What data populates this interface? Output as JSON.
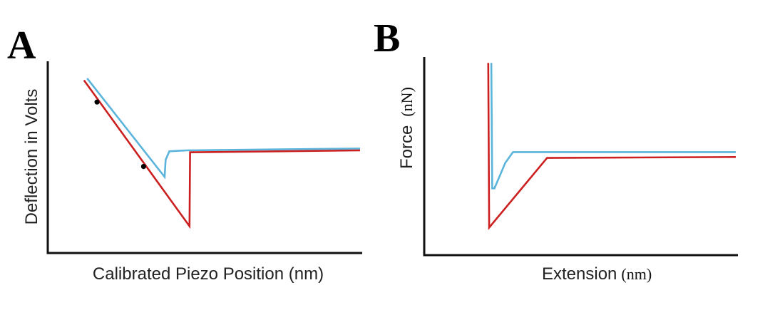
{
  "chart_data": [
    {
      "type": "line",
      "panel": "A",
      "xlabel": "Calibrated Piezo Position (nm)",
      "ylabel": "Deflection in Volts",
      "xlim": [
        0,
        100
      ],
      "ylim": [
        0,
        100
      ],
      "grid": false,
      "series": [
        {
          "color": "#5ab4dc",
          "x": [
            12,
            37,
            37.3,
            38.5,
            44,
            100
          ],
          "y": [
            91,
            39,
            48,
            52.5,
            53,
            54
          ]
        },
        {
          "color": "#cc1f1f",
          "x": [
            11,
            45,
            45.2,
            100
          ],
          "y": [
            90,
            13,
            52,
            53
          ]
        }
      ],
      "markers": [
        {
          "x": 15.2,
          "y": 78.5,
          "color": "#000000"
        },
        {
          "x": 30.2,
          "y": 44.5,
          "color": "#000000"
        }
      ]
    },
    {
      "type": "line",
      "panel": "B",
      "xlabel": "Extension",
      "xunit": "(nm)",
      "ylabel": "Force",
      "yunit": "(nN)",
      "xlim": [
        0,
        100
      ],
      "ylim": [
        0,
        100
      ],
      "grid": false,
      "series": [
        {
          "color": "#5ab4dc",
          "x": [
            21,
            21.3,
            22,
            25.5,
            28,
            100
          ],
          "y": [
            97,
            33,
            33,
            46,
            51.5,
            51.5
          ]
        },
        {
          "color": "#cc1f1f",
          "x": [
            20,
            20.3,
            39,
            100
          ],
          "y": [
            97,
            13,
            48.5,
            49
          ]
        }
      ]
    }
  ]
}
